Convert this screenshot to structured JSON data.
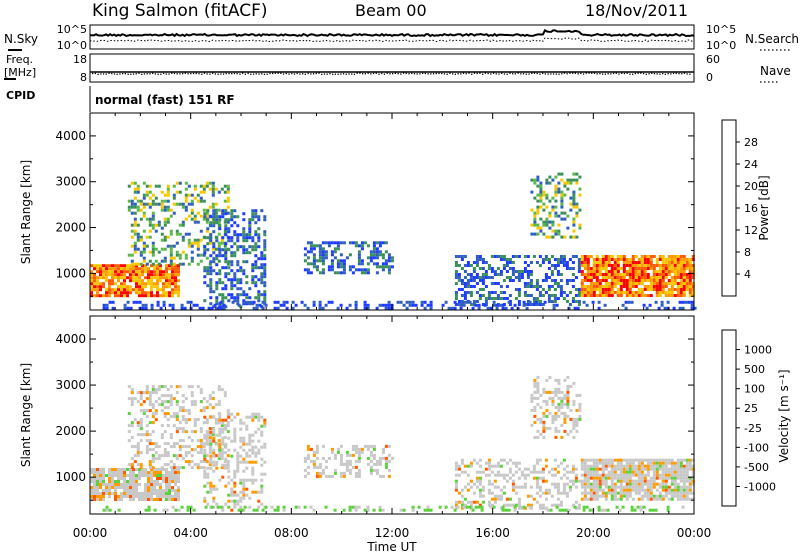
{
  "header": {
    "station": "King Salmon (fitACF)",
    "beam": "Beam 00",
    "date": "18/Nov/2011"
  },
  "params": {
    "nsky": {
      "label": "N.Sky",
      "tick_top": "10^5",
      "tick_bottom": "10^0"
    },
    "nsearch": {
      "label": "N.Search",
      "tick_top": "10^5",
      "tick_bottom": "10^0"
    },
    "freq": {
      "label_line1": "Freq.",
      "label_line2": "[MHz]",
      "tick_top": "18",
      "tick_bottom": "8"
    },
    "nave": {
      "label": "Nave",
      "tick_top": "60",
      "tick_bottom": "0"
    },
    "cpid": {
      "label": "CPID",
      "value": "normal (fast) 151 RF"
    }
  },
  "colors": {
    "power": [
      "#1e3cff",
      "#2f5fbf",
      "#3a8f5a",
      "#5cb84a",
      "#f7c800",
      "#ff9a00",
      "#ff5a00",
      "#ff0000"
    ],
    "velocity": [
      "#ff0000",
      "#ff5a00",
      "#ff9a00",
      "#c8c8c8",
      "#c8c8c8",
      "#5cd13c",
      "#3a8f5a",
      "#2f5fbf",
      "#1e3cff"
    ]
  },
  "chart_data": [
    {
      "type": "heatmap",
      "name": "power",
      "ylabel": "Slant Range [km]",
      "yticks": [
        1000,
        2000,
        3000,
        4000
      ],
      "ylim": [
        200,
        4500
      ],
      "xlim": [
        0,
        24
      ],
      "xticks": [
        "00:00",
        "04:00",
        "08:00",
        "12:00",
        "16:00",
        "20:00",
        "00:00"
      ],
      "colorbar": {
        "label": "Power [dB]",
        "ticks": [
          "4",
          "8",
          "12",
          "16",
          "20",
          "24",
          "28"
        ],
        "range": [
          0,
          30
        ]
      },
      "regions": [
        {
          "t0": 0.0,
          "t1": 3.5,
          "r0": 500,
          "r1": 1200,
          "level": "high"
        },
        {
          "t0": 1.5,
          "t1": 5.5,
          "r0": 1200,
          "r1": 3000,
          "level": "mid"
        },
        {
          "t0": 4.5,
          "t1": 7.0,
          "r0": 300,
          "r1": 2400,
          "level": "low"
        },
        {
          "t0": 8.5,
          "t1": 12.0,
          "r0": 1000,
          "r1": 1700,
          "level": "low"
        },
        {
          "t0": 14.5,
          "t1": 19.5,
          "r0": 300,
          "r1": 1400,
          "level": "low"
        },
        {
          "t0": 17.5,
          "t1": 19.5,
          "r0": 1800,
          "r1": 3200,
          "level": "mid"
        },
        {
          "t0": 19.5,
          "t1": 24.0,
          "r0": 500,
          "r1": 1400,
          "level": "high"
        }
      ]
    },
    {
      "type": "heatmap",
      "name": "velocity",
      "ylabel": "Slant Range [km]",
      "yticks": [
        1000,
        2000,
        3000,
        4000
      ],
      "ylim": [
        200,
        4500
      ],
      "xlim": [
        0,
        24
      ],
      "xticks": [
        "00:00",
        "04:00",
        "08:00",
        "12:00",
        "16:00",
        "20:00",
        "00:00"
      ],
      "xlabel": "Time UT",
      "colorbar": {
        "label": "Velocity [m s⁻¹]",
        "ticks": [
          "1000",
          "500",
          "100",
          "25",
          "-25",
          "-100",
          "-500",
          "-1000"
        ]
      }
    }
  ]
}
